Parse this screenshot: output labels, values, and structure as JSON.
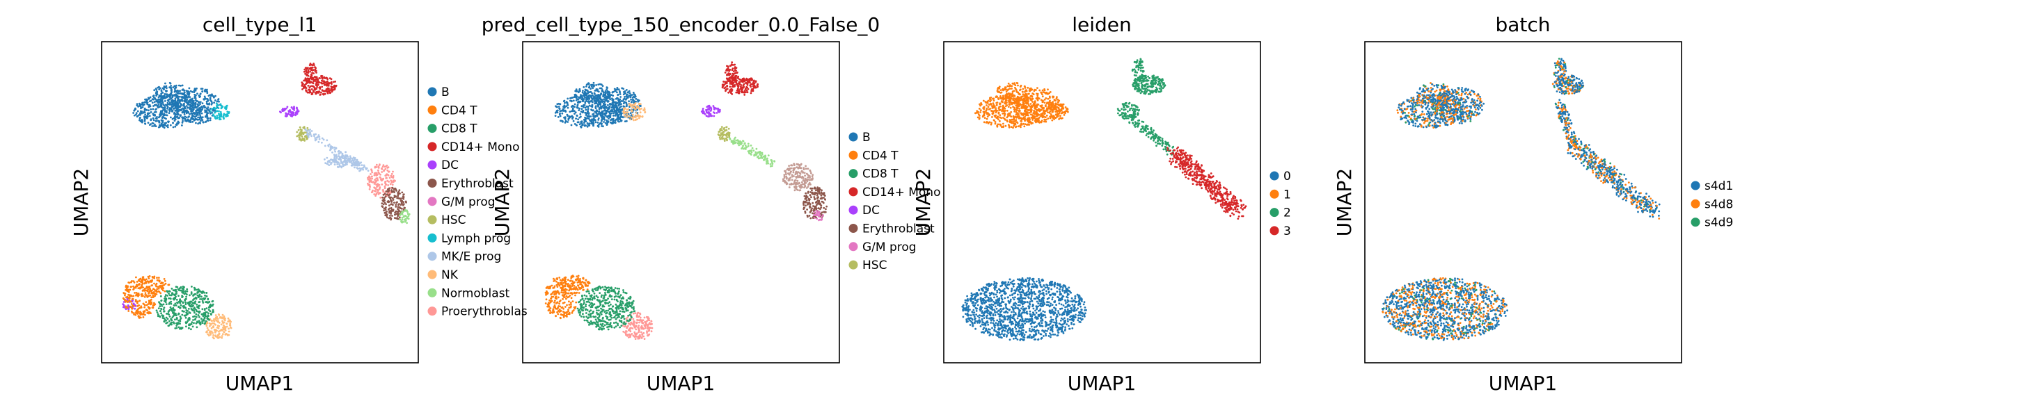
{
  "figure": {
    "title": "",
    "background": "#ffffff"
  },
  "palette": {
    "tab10": [
      "#1f77b4",
      "#ff7f0e",
      "#279e68",
      "#d62728",
      "#aa40fc",
      "#8c564b",
      "#e377c2",
      "#b5bd61",
      "#17becf",
      "#aec7e8",
      "#ffbb78",
      "#98df8a",
      "#ff9896"
    ]
  },
  "chart_data": [
    {
      "type": "scatter",
      "title": "cell_type_l1",
      "xlabel": "UMAP1",
      "ylabel": "UMAP2",
      "grid": false,
      "legend_position": "right",
      "categories": [
        "B",
        "CD4 T",
        "CD8 T",
        "CD14+ Mono",
        "DC",
        "Erythroblast",
        "G/M prog",
        "HSC",
        "Lymph prog",
        "MK/E prog",
        "NK",
        "Normoblast",
        "Proerythroblast"
      ],
      "legend_labels": [
        "B",
        "CD4 T",
        "CD8 T",
        "CD14+ Mono",
        "DC",
        "Erythroblast",
        "G/M prog",
        "HSC",
        "Lymph prog",
        "MK/E prog",
        "NK",
        "Normoblast",
        "Proerythroblas"
      ],
      "colors": [
        "#1f77b4",
        "#ff7f0e",
        "#279e68",
        "#d62728",
        "#aa40fc",
        "#8c564b",
        "#e377c2",
        "#b5bd61",
        "#17becf",
        "#aec7e8",
        "#ffbb78",
        "#98df8a",
        "#ff9896"
      ]
    },
    {
      "type": "scatter",
      "title": "pred_cell_type_150_encoder_0.0_False_0",
      "xlabel": "UMAP1",
      "ylabel": "UMAP2",
      "grid": false,
      "legend_position": "right",
      "categories": [
        "B",
        "CD4 T",
        "CD8 T",
        "CD14+ Mono",
        "DC",
        "Erythroblast",
        "G/M prog",
        "HSC"
      ],
      "legend_labels": [
        "B",
        "CD4 T",
        "CD8 T",
        "CD14+ Mono",
        "DC",
        "Erythroblast",
        "G/M prog",
        "HSC"
      ],
      "colors": [
        "#1f77b4",
        "#ff7f0e",
        "#279e68",
        "#d62728",
        "#aa40fc",
        "#8c564b",
        "#e377c2",
        "#b5bd61"
      ]
    },
    {
      "type": "scatter",
      "title": "leiden",
      "xlabel": "UMAP1",
      "ylabel": "UMAP2",
      "grid": false,
      "legend_position": "right",
      "categories": [
        "0",
        "1",
        "2",
        "3"
      ],
      "legend_labels": [
        "0",
        "1",
        "2",
        "3"
      ],
      "colors": [
        "#1f77b4",
        "#ff7f0e",
        "#279e68",
        "#d62728"
      ]
    },
    {
      "type": "scatter",
      "title": "batch",
      "xlabel": "UMAP1",
      "ylabel": "UMAP2",
      "grid": false,
      "legend_position": "right",
      "categories": [
        "s4d1",
        "s4d8",
        "s4d9"
      ],
      "legend_labels": [
        "s4d1",
        "s4d8",
        "s4d9"
      ],
      "colors": [
        "#1f77b4",
        "#ff7f0e",
        "#279e68"
      ]
    }
  ]
}
